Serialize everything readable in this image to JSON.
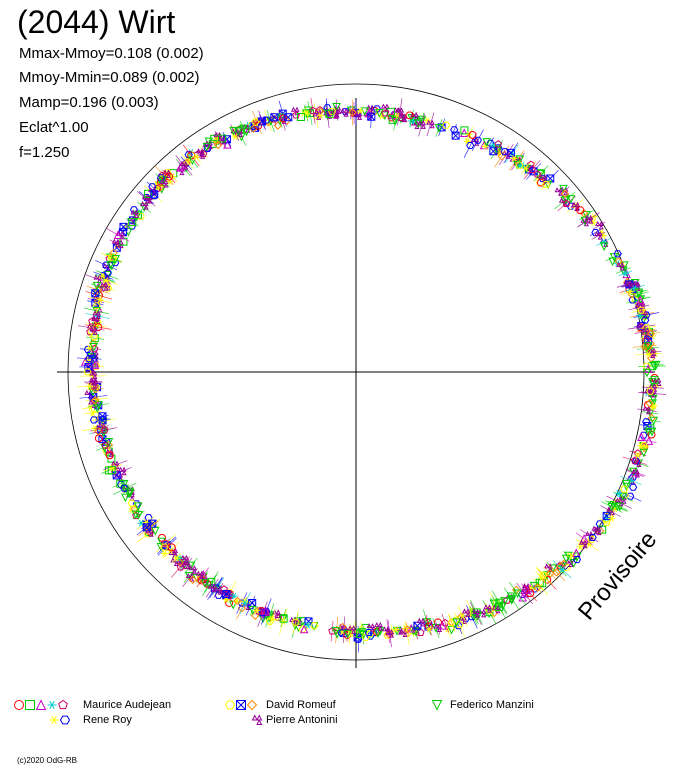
{
  "header": {
    "title": "(2044) Wirt",
    "stats": [
      "Mmax-Mmoy=0.108 (0.002)",
      "Mmoy-Mmin=0.089 (0.002)",
      "Mamp=0.196 (0.003)",
      "Eclat^1.00",
      "f=1.250"
    ]
  },
  "watermark": "Provisoire",
  "copyright": "(c)2020 OdG-RB",
  "chart_data": {
    "type": "scatter",
    "title": "(2044) Wirt",
    "description_polar": "lightcurve folded in polar coordinates around a reference circle",
    "grid": false,
    "legend_position": "bottom",
    "series": [
      {
        "name": "Maurice Audejean",
        "colors": [
          "#ff0000",
          "#00cc00",
          "#cc00cc",
          "#00cccc",
          "#cc0066"
        ],
        "markers": [
          "circle",
          "square",
          "triangle",
          "star",
          "pentagon"
        ]
      },
      {
        "name": "David Romeuf",
        "colors": [
          "#ffff00",
          "#0000ff",
          "#ff8800"
        ],
        "markers": [
          "hexagon",
          "crossbox",
          "diamond"
        ]
      },
      {
        "name": "Federico Manzini",
        "colors": [
          "#00cc00"
        ],
        "markers": [
          "triangle-down"
        ]
      },
      {
        "name": "Rene Roy",
        "colors": [
          "#ffff00",
          "#0000ff"
        ],
        "markers": [
          "star",
          "hexagon"
        ]
      },
      {
        "name": "Pierre Antonini",
        "colors": [
          "#990099"
        ],
        "markers": [
          "triangle-pair"
        ]
      }
    ]
  }
}
